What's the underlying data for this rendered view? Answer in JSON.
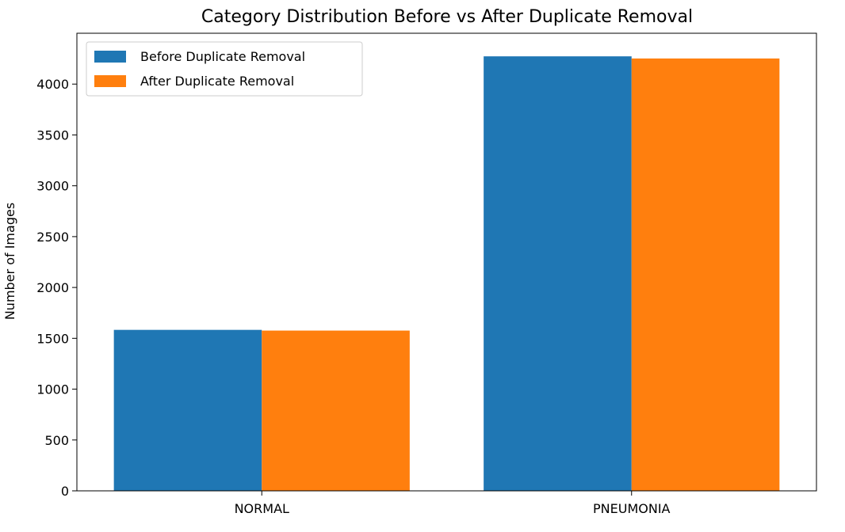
{
  "chart_data": {
    "type": "bar",
    "title": "Category Distribution Before vs After Duplicate Removal",
    "xlabel": "",
    "ylabel": "Number of Images",
    "categories": [
      "NORMAL",
      "PNEUMONIA"
    ],
    "series": [
      {
        "name": "Before Duplicate Removal",
        "values": [
          1583,
          4273
        ],
        "color": "#1f77b4"
      },
      {
        "name": "After Duplicate Removal",
        "values": [
          1576,
          4252
        ],
        "color": "#ff7f0e"
      }
    ],
    "ylim": [
      0,
      4500
    ],
    "yticks": [
      0,
      500,
      1000,
      1500,
      2000,
      2500,
      3000,
      3500,
      4000
    ],
    "legend_position": "top-left",
    "grid": false
  }
}
